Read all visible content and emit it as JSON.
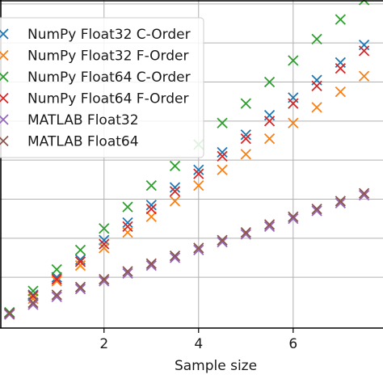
{
  "chart_data": {
    "type": "scatter",
    "xlabel": "Sample size",
    "ylabel": "",
    "xlim": [
      -0.2,
      7.9
    ],
    "ylim": [
      -0.3,
      8.1
    ],
    "x_ticks": [
      2,
      4,
      6
    ],
    "grid": true,
    "marker": "x",
    "legend_position": "upper-left",
    "x": [
      0,
      0.5,
      1,
      1.5,
      2,
      2.5,
      3,
      3.5,
      4,
      4.5,
      5,
      5.5,
      6,
      6.5,
      7,
      7.5
    ],
    "series": [
      {
        "name": "NumPy Float32 C-Order",
        "color": "#1f77b4",
        "values": [
          0.1,
          0.55,
          1.0,
          1.45,
          1.95,
          2.4,
          2.85,
          3.3,
          3.75,
          4.2,
          4.65,
          5.15,
          5.6,
          6.05,
          6.5,
          6.95
        ]
      },
      {
        "name": "NumPy Float32 F-Order",
        "color": "#ff7f0e",
        "values": [
          0.05,
          0.45,
          0.9,
          1.3,
          1.75,
          2.15,
          2.55,
          2.95,
          3.35,
          3.75,
          4.15,
          4.55,
          4.95,
          5.35,
          5.75,
          6.15
        ]
      },
      {
        "name": "NumPy Float64 C-Order",
        "color": "#2ca02c",
        "values": [
          0.1,
          0.65,
          1.2,
          1.7,
          2.25,
          2.8,
          3.35,
          3.85,
          4.4,
          4.95,
          5.45,
          6.0,
          6.55,
          7.1,
          7.6,
          8.1
        ]
      },
      {
        "name": "NumPy Float64 F-Order",
        "color": "#d62728",
        "values": [
          0.08,
          0.52,
          0.95,
          1.4,
          1.85,
          2.3,
          2.75,
          3.2,
          3.65,
          4.1,
          4.55,
          5.0,
          5.45,
          5.9,
          6.35,
          6.8
        ]
      },
      {
        "name": "MATLAB Float32",
        "color": "#9467bd",
        "values": [
          0.05,
          0.3,
          0.5,
          0.7,
          0.9,
          1.1,
          1.3,
          1.5,
          1.7,
          1.9,
          2.1,
          2.3,
          2.5,
          2.7,
          2.9,
          3.1
        ]
      },
      {
        "name": "MATLAB Float64",
        "color": "#8c564b",
        "values": [
          0.08,
          0.35,
          0.55,
          0.75,
          0.95,
          1.15,
          1.35,
          1.55,
          1.75,
          1.95,
          2.15,
          2.35,
          2.55,
          2.75,
          2.95,
          3.15
        ]
      }
    ]
  }
}
